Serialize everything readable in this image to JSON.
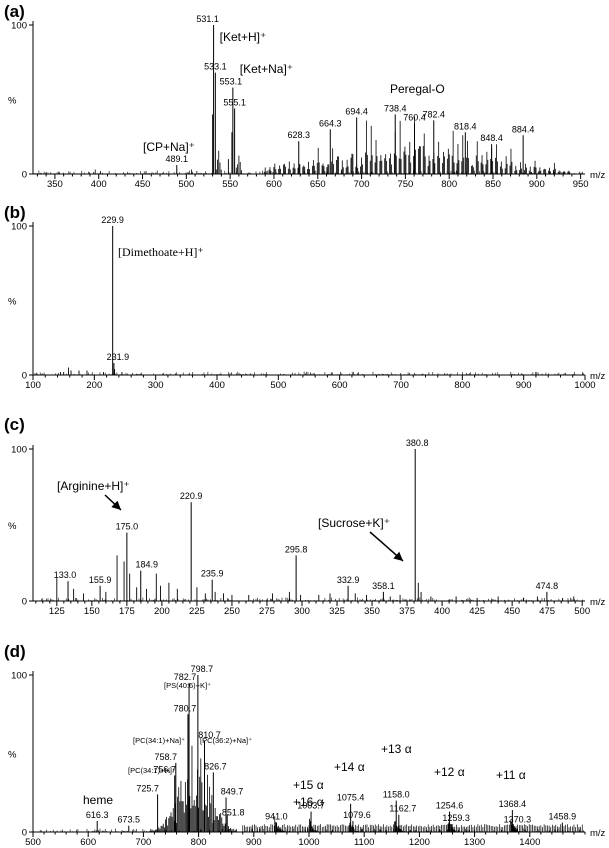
{
  "chart_data": [
    {
      "panel": "(a)",
      "type": "bar",
      "xlabel": "m/z",
      "ylabel": "%",
      "xlim": [
        325,
        955
      ],
      "ylim": [
        0,
        100
      ],
      "xticks": [
        350,
        400,
        450,
        500,
        550,
        600,
        650,
        700,
        750,
        800,
        850,
        900,
        950
      ],
      "yticks": [
        0,
        100
      ],
      "peaks": [
        {
          "x": 531.1,
          "y": 100,
          "label": "531.1"
        },
        {
          "x": 533.1,
          "y": 68,
          "label": "533.1"
        },
        {
          "x": 553.1,
          "y": 58,
          "label": "553.1"
        },
        {
          "x": 555.1,
          "y": 44,
          "label": "555.1"
        },
        {
          "x": 489.1,
          "y": 6,
          "label": "489.1"
        },
        {
          "x": 628.3,
          "y": 22,
          "label": "628.3"
        },
        {
          "x": 664.3,
          "y": 30,
          "label": "664.3"
        },
        {
          "x": 694.4,
          "y": 38,
          "label": "694.4"
        },
        {
          "x": 738.4,
          "y": 40,
          "label": "738.4"
        },
        {
          "x": 760.4,
          "y": 34,
          "label": "760.4"
        },
        {
          "x": 782.4,
          "y": 36,
          "label": "782.4"
        },
        {
          "x": 818.4,
          "y": 28,
          "label": "818.4"
        },
        {
          "x": 848.4,
          "y": 20,
          "label": "848.4"
        },
        {
          "x": 884.4,
          "y": 26,
          "label": "884.4"
        }
      ],
      "annotations": [
        {
          "text": "[Ket+H]⁺"
        },
        {
          "text": "[Ket+Na]⁺"
        },
        {
          "text": "[CP+Na]⁺"
        },
        {
          "text": "Peregal-O"
        }
      ]
    },
    {
      "panel": "(b)",
      "type": "bar",
      "xlabel": "m/z",
      "ylabel": "%",
      "xlim": [
        100,
        1000
      ],
      "ylim": [
        0,
        100
      ],
      "xticks": [
        100,
        200,
        300,
        400,
        500,
        600,
        700,
        800,
        900,
        1000
      ],
      "yticks": [
        0,
        100
      ],
      "peaks": [
        {
          "x": 229.9,
          "y": 100,
          "label": "229.9"
        },
        {
          "x": 231.9,
          "y": 8,
          "label": "231.9"
        }
      ],
      "annotations": [
        {
          "text": "[Dimethoate+H]⁺"
        }
      ]
    },
    {
      "panel": "(c)",
      "type": "bar",
      "xlabel": "m/z",
      "ylabel": "%",
      "xlim": [
        108,
        502
      ],
      "ylim": [
        0,
        100
      ],
      "xticks": [
        125,
        150,
        175,
        200,
        225,
        250,
        275,
        300,
        325,
        350,
        375,
        400,
        425,
        450,
        475,
        500
      ],
      "yticks": [
        0,
        100
      ],
      "peaks": [
        {
          "x": 380.8,
          "y": 100,
          "label": "380.8"
        },
        {
          "x": 220.9,
          "y": 65,
          "label": "220.9"
        },
        {
          "x": 175.0,
          "y": 45,
          "label": "175.0"
        },
        {
          "x": 295.8,
          "y": 30,
          "label": "295.8"
        },
        {
          "x": 184.9,
          "y": 20,
          "label": "184.9"
        },
        {
          "x": 235.9,
          "y": 14,
          "label": "235.9"
        },
        {
          "x": 133.0,
          "y": 13,
          "label": "133.0"
        },
        {
          "x": 155.9,
          "y": 10,
          "label": "155.9"
        },
        {
          "x": 332.9,
          "y": 10,
          "label": "332.9"
        },
        {
          "x": 358.1,
          "y": 6,
          "label": "358.1"
        },
        {
          "x": 474.8,
          "y": 6,
          "label": "474.8"
        }
      ],
      "annotations": [
        {
          "text": "[Arginine+H]⁺"
        },
        {
          "text": "[Sucrose+K]⁺"
        }
      ]
    },
    {
      "panel": "(d)",
      "type": "bar",
      "xlabel": "m/z",
      "ylabel": "%",
      "xlim": [
        500,
        1500
      ],
      "ylim": [
        0,
        100
      ],
      "xticks": [
        500,
        600,
        700,
        800,
        900,
        1000,
        1100,
        1200,
        1300,
        1400
      ],
      "yticks": [
        0,
        100
      ],
      "peaks": [
        {
          "x": 798.7,
          "y": 100,
          "label": "798.7"
        },
        {
          "x": 782.7,
          "y": 95,
          "label": "782.7"
        },
        {
          "x": 780.7,
          "y": 75,
          "label": "780.7"
        },
        {
          "x": 810.7,
          "y": 58,
          "label": "810.7"
        },
        {
          "x": 758.7,
          "y": 44,
          "label": "758.7"
        },
        {
          "x": 826.7,
          "y": 38,
          "label": "826.7"
        },
        {
          "x": 756.7,
          "y": 36,
          "label": "756.7"
        },
        {
          "x": 725.7,
          "y": 24,
          "label": "725.7"
        },
        {
          "x": 849.7,
          "y": 22,
          "label": "849.7"
        },
        {
          "x": 851.8,
          "y": 11,
          "label": "851.8"
        },
        {
          "x": 616.3,
          "y": 7,
          "label": "616.3"
        },
        {
          "x": 673.5,
          "y": 4,
          "label": "673.5"
        },
        {
          "x": 941.0,
          "y": 6,
          "label": "941.0"
        },
        {
          "x": 1003.7,
          "y": 13,
          "label": "1003.7"
        },
        {
          "x": 1075.4,
          "y": 18,
          "label": "1075.4"
        },
        {
          "x": 1079.6,
          "y": 7,
          "label": "1079.6"
        },
        {
          "x": 1158.0,
          "y": 20,
          "label": "1158.0"
        },
        {
          "x": 1162.7,
          "y": 11,
          "label": "1162.7"
        },
        {
          "x": 1254.6,
          "y": 13,
          "label": "1254.6"
        },
        {
          "x": 1259.3,
          "y": 5,
          "label": "1259.3"
        },
        {
          "x": 1368.4,
          "y": 14,
          "label": "1368.4"
        },
        {
          "x": 1370.3,
          "y": 4,
          "label": "1370.3"
        },
        {
          "x": 1458.9,
          "y": 6,
          "label": "1458.9"
        }
      ],
      "annotations": [
        {
          "text": "[PS(40:6)+K]⁺"
        },
        {
          "text": "[PC(34:1)+Na]⁺"
        },
        {
          "text": "[PC(36:2)+Na]⁺"
        },
        {
          "text": "[PC(34:1)+H]⁺"
        },
        {
          "text": "heme"
        },
        {
          "text": "+16 α"
        },
        {
          "text": "+15 α"
        },
        {
          "text": "+14 α"
        },
        {
          "text": "+13 α"
        },
        {
          "text": "+12 α"
        },
        {
          "text": "+11 α"
        }
      ]
    }
  ]
}
